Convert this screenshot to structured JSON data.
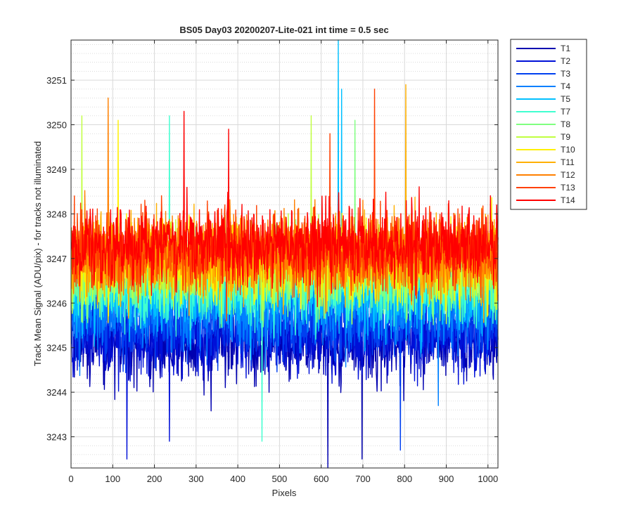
{
  "chart_data": {
    "type": "line",
    "title": "BS05 Day03 20200207-Lite-021 int time = 0.5 sec",
    "xlabel": "Pixels",
    "ylabel": "Track Mean Signal (ADU/pix) - for tracks not illuminated",
    "xlim": [
      0,
      1024
    ],
    "ylim": [
      3242.3,
      3251.9
    ],
    "x_ticks": [
      0,
      100,
      200,
      300,
      400,
      500,
      600,
      700,
      800,
      900,
      1000
    ],
    "y_ticks": [
      3243,
      3244,
      3245,
      3246,
      3247,
      3248,
      3249,
      3250,
      3251
    ],
    "x_tick_labels": [
      "0",
      "100",
      "200",
      "300",
      "400",
      "500",
      "600",
      "700",
      "800",
      "900",
      "1000"
    ],
    "y_tick_labels": [
      "3243",
      "3244",
      "3245",
      "3246",
      "3247",
      "3248",
      "3249",
      "3250",
      "3251"
    ],
    "grid": true,
    "minor_grid_y": true,
    "legend_position": "outside-top-right",
    "n_points": 1024,
    "noise_amplitude": 0.95,
    "series": [
      {
        "name": "T1",
        "color": "#0000B0",
        "mean": 3245.1,
        "spikes": [
          [
            615,
            3242.3
          ],
          [
            697,
            3242.5
          ]
        ]
      },
      {
        "name": "T2",
        "color": "#0010D8",
        "mean": 3245.3,
        "spikes": [
          [
            133,
            3242.5
          ],
          [
            235,
            3242.9
          ]
        ]
      },
      {
        "name": "T3",
        "color": "#0040F0",
        "mean": 3245.6,
        "spikes": [
          [
            789,
            3242.7
          ]
        ]
      },
      {
        "name": "T4",
        "color": "#0080FF",
        "mean": 3245.9,
        "spikes": [
          [
            880,
            3243.7
          ]
        ]
      },
      {
        "name": "T5",
        "color": "#00C0FF",
        "mean": 3246.2,
        "spikes": [
          [
            640,
            3251.9
          ],
          [
            648,
            3250.8
          ]
        ]
      },
      {
        "name": "T7",
        "color": "#40FFD0",
        "mean": 3246.4,
        "spikes": [
          [
            457,
            3242.9
          ],
          [
            235,
            3250.2
          ]
        ]
      },
      {
        "name": "T8",
        "color": "#80FF80",
        "mean": 3246.6,
        "spikes": [
          [
            680,
            3250.1
          ]
        ]
      },
      {
        "name": "T9",
        "color": "#C0FF40",
        "mean": 3246.8,
        "spikes": [
          [
            25,
            3250.2
          ],
          [
            575,
            3250.2
          ]
        ]
      },
      {
        "name": "T10",
        "color": "#FFF000",
        "mean": 3246.9,
        "spikes": [
          [
            112,
            3250.1
          ]
        ]
      },
      {
        "name": "T11",
        "color": "#FFB000",
        "mean": 3247.0,
        "spikes": [
          [
            802,
            3250.9
          ]
        ]
      },
      {
        "name": "T12",
        "color": "#FF8000",
        "mean": 3247.1,
        "spikes": [
          [
            88,
            3250.6
          ]
        ]
      },
      {
        "name": "T13",
        "color": "#FF4000",
        "mean": 3247.2,
        "spikes": [
          [
            727,
            3250.8
          ],
          [
            620,
            3249.8
          ]
        ]
      },
      {
        "name": "T14",
        "color": "#FF0000",
        "mean": 3247.3,
        "spikes": [
          [
            270,
            3250.3
          ],
          [
            377,
            3249.9
          ]
        ]
      }
    ]
  }
}
